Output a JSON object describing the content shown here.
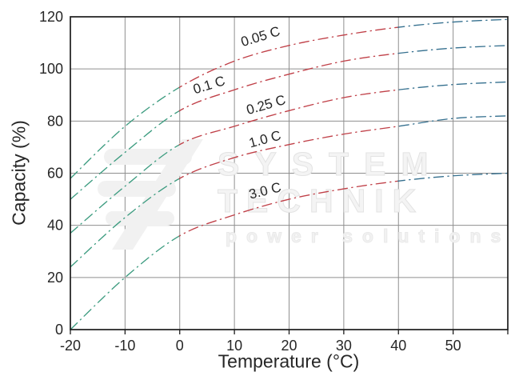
{
  "watermark": {
    "line1": "SYSTEM",
    "line2": "TECHNIK",
    "line3": "power solutions"
  },
  "chart_data": {
    "type": "line",
    "title": "",
    "xlabel": "Temperature (°C)",
    "ylabel": "Capacity (%)",
    "xlim": [
      -20,
      60
    ],
    "ylim": [
      0,
      120
    ],
    "x_ticks": [
      -20,
      -10,
      0,
      10,
      20,
      30,
      40,
      50
    ],
    "y_ticks": [
      0,
      20,
      40,
      60,
      80,
      100,
      120
    ],
    "grid": true,
    "legend_position": "none (labels drawn on curves)",
    "line_style": "dash-dot",
    "x": [
      -20,
      -10,
      0,
      10,
      20,
      30,
      40,
      50,
      60
    ],
    "series": [
      {
        "name": "0.05 C",
        "values": [
          58,
          78,
          93,
          103,
          109,
          113,
          116,
          118,
          119
        ],
        "label_at": {
          "t": 15.0,
          "c": 110.8,
          "angle": -17
        }
      },
      {
        "name": "0.1 C",
        "values": [
          50,
          68,
          84,
          92,
          98,
          103,
          106,
          108,
          109
        ],
        "label_at": {
          "t": 5.6,
          "c": 92.2,
          "angle": -17
        }
      },
      {
        "name": "0.25 C",
        "values": [
          37,
          55,
          71,
          78,
          84,
          89,
          92,
          94,
          95
        ],
        "label_at": {
          "t": 16.0,
          "c": 84.6,
          "angle": -16
        }
      },
      {
        "name": "1.0 C",
        "values": [
          24,
          43,
          58,
          66,
          71,
          75,
          78,
          81,
          82
        ],
        "label_at": {
          "t": 15.8,
          "c": 71.4,
          "angle": -15
        }
      },
      {
        "name": "3.0 C",
        "values": [
          0,
          20,
          36,
          44,
          50,
          54,
          57,
          59,
          60
        ],
        "label_at": {
          "t": 15.8,
          "c": 51.6,
          "angle": -14
        }
      }
    ],
    "color_zones": [
      {
        "from": -20,
        "to": 0,
        "color": "#3d9c80",
        "meaning": "temperatures below 0 °C"
      },
      {
        "from": 0,
        "to": 40,
        "color": "#c04048",
        "meaning": "temperatures 0–40 °C"
      },
      {
        "from": 40,
        "to": 60,
        "color": "#35708f",
        "meaning": "temperatures above 40 °C"
      }
    ],
    "colors": {
      "grid": "#8f8f8f",
      "border": "#1c1c1c",
      "text": "#262626"
    }
  }
}
